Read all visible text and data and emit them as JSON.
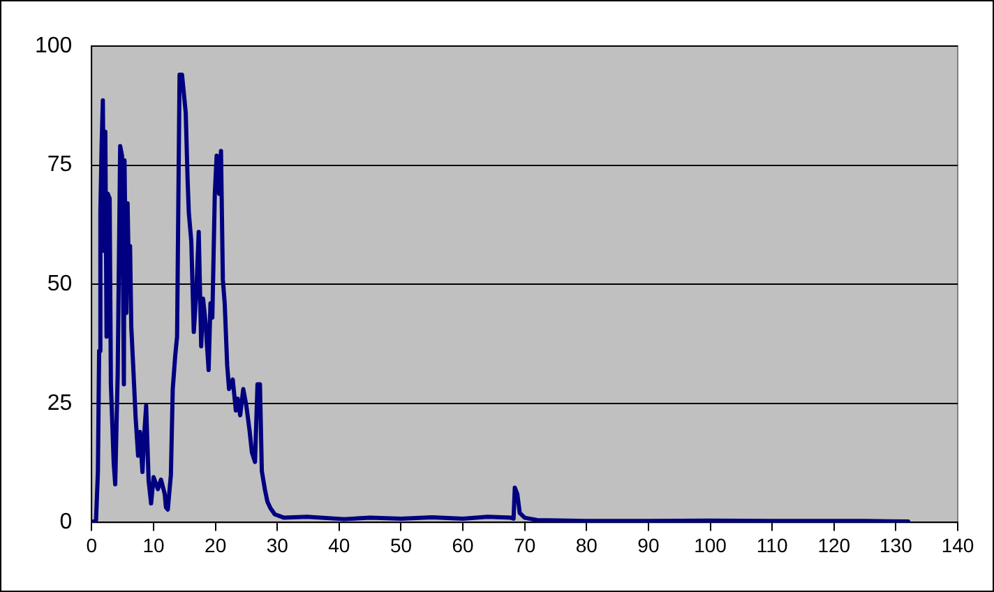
{
  "chart_data": {
    "type": "line",
    "xlim": [
      0,
      140
    ],
    "xticks": [
      0,
      10,
      20,
      30,
      40,
      50,
      60,
      70,
      80,
      90,
      100,
      110,
      120,
      130,
      140
    ],
    "ylim": [
      0,
      100
    ],
    "yticks": [
      0,
      25,
      50,
      75,
      100
    ],
    "grid": "y",
    "legend": false,
    "marker": "none",
    "line_style": "solid",
    "series": [
      {
        "color": "#000080",
        "x": [
          0,
          0.7,
          1.0,
          1.2,
          1.4,
          1.6,
          1.8,
          2.0,
          2.2,
          2.4,
          2.6,
          2.9,
          3.1,
          3.55,
          3.8,
          4.0,
          4.2,
          4.6,
          4.9,
          5.2,
          5.3,
          5.6,
          5.8,
          6.0,
          6.2,
          6.4,
          6.7,
          7.1,
          7.5,
          7.8,
          8.2,
          8.5,
          8.8,
          9.2,
          9.6,
          10.0,
          10.7,
          11.2,
          11.8,
          12.0,
          12.3,
          12.8,
          13.1,
          13.5,
          13.8,
          14.2,
          14.6,
          15.2,
          15.5,
          15.7,
          16.1,
          16.5,
          16.9,
          17.3,
          17.7,
          18.0,
          18.4,
          18.9,
          19.2,
          19.5,
          19.9,
          20.2,
          20.6,
          20.9,
          21.2,
          21.5,
          21.9,
          22.2,
          22.8,
          23.3,
          23.6,
          24.0,
          24.5,
          25.0,
          25.5,
          25.9,
          26.4,
          26.8,
          27.2,
          27.5,
          28.0,
          28.4,
          28.9,
          29.6,
          31.1,
          34.8,
          40.8,
          45,
          50,
          55,
          60,
          64,
          67.8,
          68.2,
          68.4,
          68.8,
          69.2,
          70,
          72,
          80,
          90,
          100,
          110,
          120,
          125,
          132
        ],
        "values": [
          0,
          0.5,
          10.6,
          36,
          65,
          79,
          88.6,
          57,
          82,
          39,
          69,
          68,
          29,
          12.6,
          8,
          20,
          31,
          79,
          77,
          29,
          76,
          44,
          67,
          52,
          58,
          41,
          33,
          22,
          14,
          19,
          10.6,
          18.6,
          24.5,
          8.8,
          4,
          9.5,
          7,
          9,
          6,
          3.2,
          2.7,
          10,
          28,
          35,
          39,
          94,
          94,
          86,
          72,
          65,
          59,
          40,
          48,
          61,
          37,
          47,
          42,
          32,
          46,
          43,
          69,
          77,
          69,
          78,
          51,
          46,
          33,
          28,
          30,
          23.5,
          26,
          22.5,
          28,
          24.5,
          19.5,
          14.7,
          12.7,
          29,
          29,
          10.8,
          6.9,
          4.4,
          3,
          1.7,
          1,
          1.2,
          0.7,
          1,
          0.8,
          1.1,
          0.8,
          1.2,
          1,
          0.8,
          7.3,
          6,
          2,
          1,
          0.5,
          0.3,
          0.3,
          0.4,
          0.3,
          0.3,
          0.3,
          0.2
        ]
      }
    ]
  }
}
